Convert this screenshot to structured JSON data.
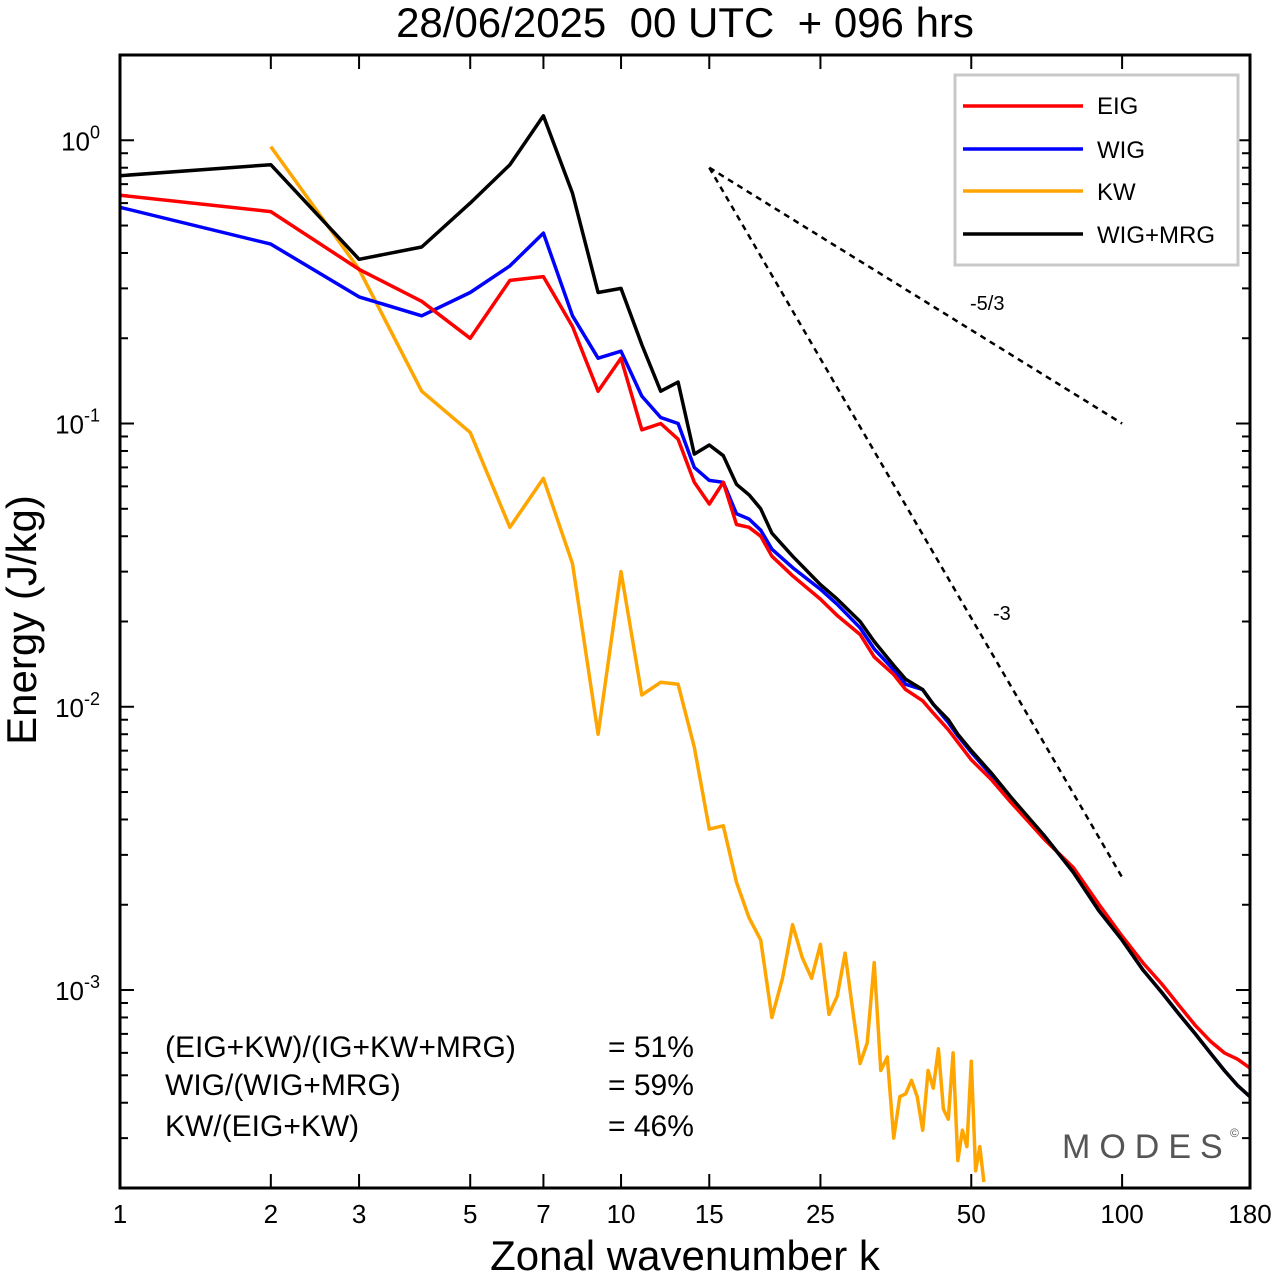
{
  "chart_data": {
    "type": "line",
    "title": "28/06/2025  00 UTC  + 096 hrs",
    "xlabel": "Zonal wavenumber k",
    "ylabel": "Energy (J/kg)",
    "x_scale": "log",
    "y_scale": "log",
    "xlim": [
      1,
      180
    ],
    "ylim": [
      0.0002,
      2.0
    ],
    "x_ticks": [
      1,
      2,
      3,
      5,
      7,
      10,
      15,
      25,
      50,
      100,
      180
    ],
    "x_tick_labels": [
      "1",
      "2",
      "3",
      "5",
      "7",
      "10",
      "15",
      "25",
      "50",
      "100",
      "180"
    ],
    "y_ticks": [
      0.001,
      0.01,
      0.1,
      1
    ],
    "y_tick_bases": [
      "10",
      "10",
      "10",
      "10"
    ],
    "y_tick_exps": [
      "-3",
      "-2",
      "-1",
      "0"
    ],
    "grid": false,
    "legend_position": "top-right",
    "series": [
      {
        "name": "EIG",
        "color": "#ff0000",
        "x": [
          1,
          2,
          3,
          4,
          5,
          6,
          7,
          8,
          9,
          10,
          11,
          12,
          13,
          14,
          15,
          16,
          17,
          18,
          19,
          20,
          22,
          25,
          27,
          30,
          32,
          35,
          37,
          40,
          42,
          45,
          47,
          50,
          55,
          60,
          70,
          80,
          90,
          100,
          110,
          120,
          130,
          140,
          150,
          160,
          170,
          180
        ],
        "y": [
          0.64,
          0.56,
          0.35,
          0.27,
          0.2,
          0.32,
          0.33,
          0.22,
          0.13,
          0.17,
          0.095,
          0.1,
          0.088,
          0.062,
          0.052,
          0.062,
          0.044,
          0.043,
          0.04,
          0.034,
          0.029,
          0.024,
          0.021,
          0.018,
          0.015,
          0.013,
          0.0115,
          0.0105,
          0.0095,
          0.0083,
          0.0075,
          0.0065,
          0.0055,
          0.0046,
          0.0034,
          0.0027,
          0.002,
          0.00155,
          0.00125,
          0.00105,
          0.00088,
          0.00075,
          0.00066,
          0.0006,
          0.00057,
          0.00053
        ]
      },
      {
        "name": "WIG",
        "color": "#0000ff",
        "x": [
          1,
          2,
          3,
          4,
          5,
          6,
          7,
          8,
          9,
          10,
          11,
          12,
          13,
          14,
          15,
          16,
          17,
          18,
          19,
          20,
          22,
          25,
          27,
          30,
          32,
          35,
          37,
          40,
          42,
          45,
          47,
          50,
          55,
          60,
          70,
          80,
          90,
          100,
          110,
          120,
          130,
          140,
          150,
          160,
          170,
          180
        ],
        "y": [
          0.58,
          0.43,
          0.28,
          0.24,
          0.29,
          0.36,
          0.47,
          0.24,
          0.17,
          0.18,
          0.125,
          0.105,
          0.1,
          0.07,
          0.063,
          0.062,
          0.048,
          0.046,
          0.042,
          0.036,
          0.031,
          0.026,
          0.023,
          0.019,
          0.016,
          0.0135,
          0.012,
          0.0115,
          0.0102,
          0.0088,
          0.0079,
          0.0069,
          0.0057,
          0.0047,
          0.0035,
          0.0026,
          0.0019,
          0.0015,
          0.00118,
          0.00098,
          0.00082,
          0.0007,
          0.0006,
          0.00052,
          0.00046,
          0.00042
        ]
      },
      {
        "name": "KW",
        "color": "#ffa500",
        "x": [
          2,
          3,
          4,
          5,
          6,
          7,
          8,
          9,
          10,
          11,
          12,
          13,
          14,
          15,
          16,
          17,
          18,
          19,
          20,
          21,
          22,
          23,
          24,
          25,
          26,
          27,
          28,
          29,
          30,
          31,
          32,
          33,
          34,
          35,
          36,
          37,
          38,
          39,
          40,
          41,
          42,
          43,
          44,
          45,
          46,
          47,
          48,
          49,
          50,
          51,
          52,
          53
        ],
        "y": [
          0.95,
          0.35,
          0.13,
          0.093,
          0.043,
          0.064,
          0.032,
          0.008,
          0.03,
          0.011,
          0.0122,
          0.012,
          0.0072,
          0.0037,
          0.0038,
          0.0024,
          0.0018,
          0.0015,
          0.0008,
          0.0011,
          0.0017,
          0.0013,
          0.0011,
          0.00145,
          0.00082,
          0.00095,
          0.00135,
          0.00085,
          0.00055,
          0.00065,
          0.00125,
          0.00052,
          0.00058,
          0.0003,
          0.00042,
          0.00043,
          0.00048,
          0.00042,
          0.00032,
          0.00052,
          0.00045,
          0.00062,
          0.00038,
          0.00035,
          0.0006,
          0.00025,
          0.00032,
          0.00028,
          0.00056,
          0.00023,
          0.00028,
          0.00021
        ]
      },
      {
        "name": "WIG+MRG",
        "color": "#000000",
        "x": [
          1,
          2,
          3,
          4,
          5,
          6,
          7,
          8,
          9,
          10,
          11,
          12,
          13,
          14,
          15,
          16,
          17,
          18,
          19,
          20,
          22,
          25,
          27,
          30,
          32,
          35,
          37,
          40,
          42,
          45,
          47,
          50,
          55,
          60,
          70,
          80,
          90,
          100,
          110,
          120,
          130,
          140,
          150,
          160,
          170,
          180
        ],
        "y": [
          0.75,
          0.82,
          0.38,
          0.42,
          0.6,
          0.82,
          1.22,
          0.65,
          0.29,
          0.3,
          0.19,
          0.13,
          0.14,
          0.078,
          0.084,
          0.077,
          0.061,
          0.056,
          0.05,
          0.041,
          0.034,
          0.027,
          0.024,
          0.02,
          0.017,
          0.014,
          0.0125,
          0.0115,
          0.0102,
          0.009,
          0.008,
          0.007,
          0.0058,
          0.0048,
          0.0035,
          0.0026,
          0.0019,
          0.0015,
          0.00118,
          0.00098,
          0.00082,
          0.0007,
          0.0006,
          0.00052,
          0.00046,
          0.00042
        ]
      }
    ],
    "reference_slopes": [
      {
        "label": "-5/3",
        "x": [
          15,
          100
        ],
        "y": [
          0.8,
          0.1
        ]
      },
      {
        "label": "-3",
        "x": [
          15,
          100
        ],
        "y": [
          0.8,
          0.0025
        ]
      }
    ],
    "annotations": {
      "stats": [
        {
          "label": "(EIG+KW)/(IG+KW+MRG)",
          "value": "= 51%"
        },
        {
          "label": "WIG/(WIG+MRG)",
          "value": "= 59%"
        },
        {
          "label": "KW/(EIG+KW)",
          "value": "= 46%"
        }
      ],
      "watermark": "MODES",
      "watermark_symbol": "©"
    }
  }
}
